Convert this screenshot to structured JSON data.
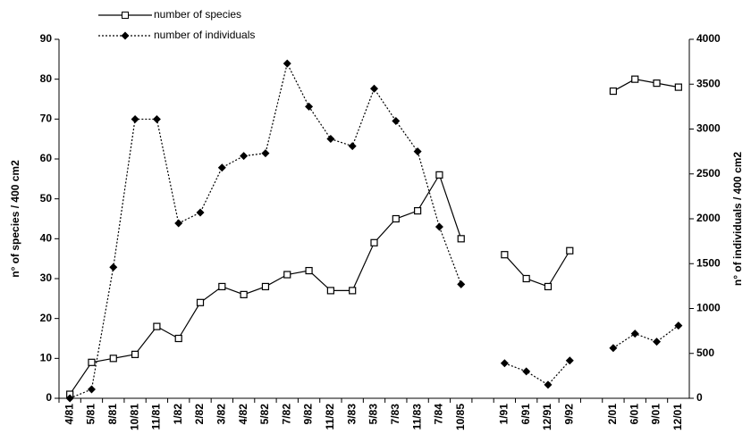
{
  "chart_data": {
    "type": "line",
    "categories": [
      "4/81",
      "5/81",
      "8/81",
      "10/81",
      "11/81",
      "1/82",
      "2/82",
      "3/82",
      "4/82",
      "5/82",
      "7/82",
      "9/82",
      "11/82",
      "3/83",
      "5/83",
      "7/83",
      "11/83",
      "7/84",
      "10/85",
      null,
      "1/91",
      "6/91",
      "12/91",
      "9/92",
      null,
      "2/01",
      "6/01",
      "9/01",
      "12/01"
    ],
    "series": [
      {
        "name": "number of species",
        "color": "#000000",
        "line_style": "solid",
        "marker": "square",
        "values": [
          1,
          9,
          10,
          11,
          18,
          15,
          24,
          28,
          26,
          28,
          31,
          32,
          27,
          27,
          39,
          45,
          47,
          56,
          40,
          null,
          36,
          30,
          28,
          37,
          null,
          77,
          80,
          79,
          78
        ]
      },
      {
        "name": "number of individuals",
        "color": "#000000",
        "line_style": "dotted",
        "marker": "diamond",
        "axis": "y2",
        "values": [
          0,
          100,
          1460,
          3110,
          3110,
          1950,
          2070,
          2570,
          2700,
          2730,
          3730,
          3250,
          2890,
          2810,
          3450,
          3090,
          2750,
          1910,
          1270,
          null,
          390,
          300,
          150,
          420,
          null,
          560,
          720,
          630,
          810
        ]
      }
    ],
    "y_label": "n° of species / 400 cm2",
    "y2_label": "n° of individuals / 400 cm2",
    "ylim": [
      0,
      90
    ],
    "yticks": [
      0,
      10,
      20,
      30,
      40,
      50,
      60,
      70,
      80,
      90
    ],
    "y2lim": [
      0,
      4000
    ],
    "y2ticks": [
      0,
      500,
      1000,
      1500,
      2000,
      2500,
      3000,
      3500,
      4000
    ]
  }
}
